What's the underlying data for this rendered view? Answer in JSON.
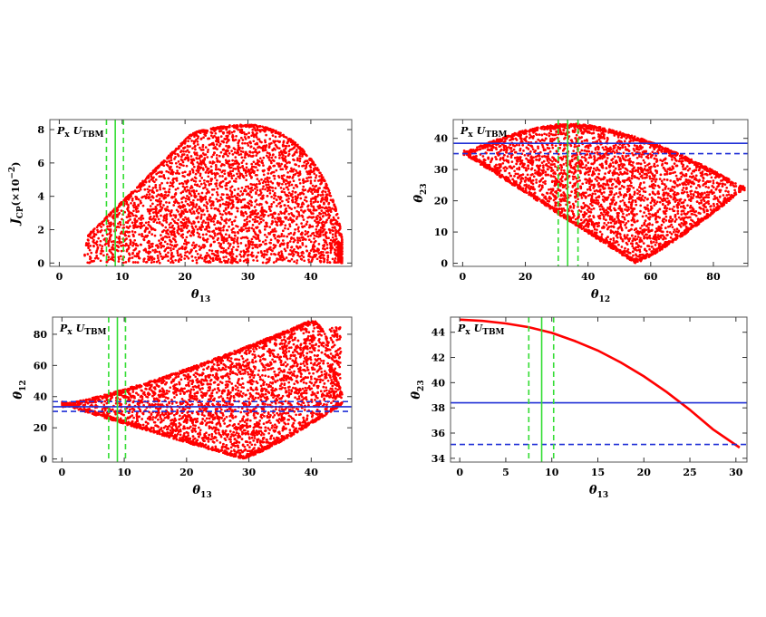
{
  "colors": {
    "points": "#ff0000",
    "band_green": "#33dd33",
    "band_blue": "#1f2fd6",
    "frame": "#555555"
  },
  "chart_data": [
    {
      "id": "p1",
      "type": "scatter",
      "panel_label": {
        "main": "P",
        "main_sub": "x",
        "second": "U",
        "second_sub": "TBM"
      },
      "xlabel": {
        "main": "θ",
        "sub": "13"
      },
      "ylabel": {
        "main": "J",
        "sub": "CP",
        "rest": "(×10",
        "sup": "−2",
        "end": ")"
      },
      "xlim": [
        -1.5,
        46.5
      ],
      "ylim": [
        -0.2,
        8.6
      ],
      "xticks": [
        0,
        10,
        20,
        30,
        40
      ],
      "yticks": [
        0,
        2,
        4,
        6,
        8
      ],
      "region": {
        "kind": "jcp"
      },
      "vlines": [
        {
          "value": 8.9,
          "style": "solid",
          "color": "green"
        },
        {
          "value": 7.5,
          "style": "dashed",
          "color": "green"
        },
        {
          "value": 10.2,
          "style": "dashed",
          "color": "green"
        }
      ],
      "hlines": []
    },
    {
      "id": "p2",
      "type": "scatter",
      "panel_label": {
        "main": "P",
        "main_sub": "x",
        "second": "U",
        "second_sub": "TBM"
      },
      "xlabel": {
        "main": "θ",
        "sub": "12"
      },
      "ylabel": {
        "main": "θ",
        "sub": "23"
      },
      "xlim": [
        -3,
        91
      ],
      "ylim": [
        -1,
        46
      ],
      "xticks": [
        0,
        20,
        40,
        60,
        80
      ],
      "yticks": [
        0,
        10,
        20,
        30,
        40
      ],
      "region": {
        "kind": "t12t23"
      },
      "vlines": [
        {
          "value": 33.5,
          "style": "solid",
          "color": "green"
        },
        {
          "value": 30.5,
          "style": "dashed",
          "color": "green"
        },
        {
          "value": 36.8,
          "style": "dashed",
          "color": "green"
        }
      ],
      "hlines": [
        {
          "value": 38.4,
          "style": "solid",
          "color": "blue"
        },
        {
          "value": 35.1,
          "style": "dashed",
          "color": "blue"
        }
      ]
    },
    {
      "id": "p3",
      "type": "scatter",
      "panel_label": {
        "main": "P",
        "main_sub": "x",
        "second": "U",
        "second_sub": "TBM"
      },
      "xlabel": {
        "main": "θ",
        "sub": "13"
      },
      "ylabel": {
        "main": "θ",
        "sub": "12"
      },
      "xlim": [
        -1.5,
        46.5
      ],
      "ylim": [
        -2,
        91
      ],
      "xticks": [
        0,
        10,
        20,
        30,
        40
      ],
      "yticks": [
        0,
        20,
        40,
        60,
        80
      ],
      "region": {
        "kind": "t13t12"
      },
      "vlines": [
        {
          "value": 8.9,
          "style": "solid",
          "color": "green"
        },
        {
          "value": 7.5,
          "style": "dashed",
          "color": "green"
        },
        {
          "value": 10.2,
          "style": "dashed",
          "color": "green"
        }
      ],
      "hlines": [
        {
          "value": 33.5,
          "style": "solid",
          "color": "blue"
        },
        {
          "value": 30.5,
          "style": "dashed",
          "color": "blue"
        },
        {
          "value": 36.8,
          "style": "dashed",
          "color": "blue"
        }
      ]
    },
    {
      "id": "p4",
      "type": "line",
      "panel_label": {
        "main": "P",
        "main_sub": "x",
        "second": "U",
        "second_sub": "TBM"
      },
      "xlabel": {
        "main": "θ",
        "sub": "13"
      },
      "ylabel": {
        "main": "θ",
        "sub": "23"
      },
      "xlim": [
        -1,
        31.2
      ],
      "ylim": [
        33.7,
        45.2
      ],
      "xticks": [
        0,
        5,
        10,
        15,
        20,
        25,
        30
      ],
      "yticks": [
        34,
        36,
        38,
        40,
        42,
        44
      ],
      "series": [
        {
          "x": [
            0,
            2.5,
            5,
            7.5,
            10,
            12.5,
            15,
            17.5,
            20,
            22.5,
            25,
            27.5,
            30.4
          ],
          "y": [
            45.0,
            44.9,
            44.7,
            44.4,
            43.95,
            43.3,
            42.55,
            41.6,
            40.5,
            39.25,
            37.85,
            36.3,
            34.85
          ]
        }
      ],
      "vlines": [
        {
          "value": 8.9,
          "style": "solid",
          "color": "green"
        },
        {
          "value": 7.5,
          "style": "dashed",
          "color": "green"
        },
        {
          "value": 10.2,
          "style": "dashed",
          "color": "green"
        }
      ],
      "hlines": [
        {
          "value": 38.4,
          "style": "solid",
          "color": "blue"
        },
        {
          "value": 35.1,
          "style": "dashed",
          "color": "blue"
        }
      ]
    }
  ]
}
